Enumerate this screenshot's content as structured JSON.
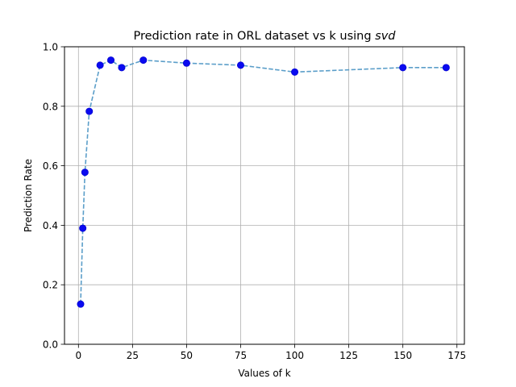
{
  "chart_data": {
    "type": "line",
    "title_main": "Prediction rate in ORL dataset vs k using ",
    "title_emph": "svd",
    "xlabel": "Values of k",
    "ylabel": "Prediction Rate",
    "xlim": [
      -6.45,
      178.45
    ],
    "ylim": [
      0.0,
      1.0
    ],
    "x_ticks": [
      0,
      25,
      50,
      75,
      100,
      125,
      150,
      175
    ],
    "x_tick_labels": [
      "0",
      "25",
      "50",
      "75",
      "100",
      "125",
      "150",
      "175"
    ],
    "y_ticks": [
      0.0,
      0.2,
      0.4,
      0.6,
      0.8,
      1.0
    ],
    "y_tick_labels": [
      "0.0",
      "0.2",
      "0.4",
      "0.6",
      "0.8",
      "1.0"
    ],
    "grid": true,
    "line_style": "dashed",
    "line_color": "#5b9ec9",
    "marker_color": "#0a0af0",
    "series": [
      {
        "x": [
          1,
          2,
          3,
          5,
          10,
          15,
          20,
          30,
          50,
          75,
          100,
          150,
          170
        ],
        "y": [
          0.135,
          0.39,
          0.578,
          0.783,
          0.938,
          0.955,
          0.93,
          0.955,
          0.945,
          0.938,
          0.915,
          0.93,
          0.93
        ]
      }
    ]
  }
}
